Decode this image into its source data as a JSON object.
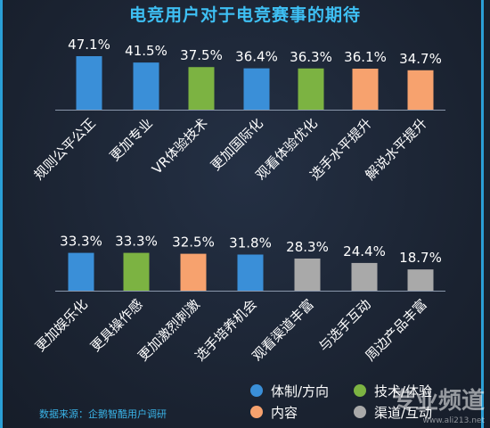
{
  "title": "电竞用户对于电竞赛事的期待",
  "source": "数据来源：企鹅智酷用户调研",
  "watermark": "专业频道",
  "watermark_url": "www.ali213.net",
  "colors": {
    "体制/方向": "#3a8fd8",
    "技术/体验": "#7cb342",
    "内容": "#f7a26e",
    "渠道/互动": "#a9a9a9"
  },
  "chart_data": {
    "type": "bar",
    "unit": "%",
    "legend": [
      {
        "name": "体制/方向"
      },
      {
        "name": "技术/体验"
      },
      {
        "name": "内容"
      },
      {
        "name": "渠道/互动"
      }
    ],
    "legend_position": "bottom-right",
    "grid": false,
    "rows": [
      {
        "items": [
          {
            "label": "规则公平公正",
            "value": 47.1,
            "group": "体制/方向"
          },
          {
            "label": "更加专业",
            "value": 41.5,
            "group": "体制/方向"
          },
          {
            "label": "VR体验技术",
            "value": 37.5,
            "group": "技术/体验"
          },
          {
            "label": "更加国际化",
            "value": 36.4,
            "group": "体制/方向"
          },
          {
            "label": "观看体验优化",
            "value": 36.3,
            "group": "技术/体验"
          },
          {
            "label": "选手水平提升",
            "value": 36.1,
            "group": "内容"
          },
          {
            "label": "解说水平提升",
            "value": 34.7,
            "group": "内容"
          }
        ]
      },
      {
        "items": [
          {
            "label": "更加娱乐化",
            "value": 33.3,
            "group": "体制/方向"
          },
          {
            "label": "更具操作感",
            "value": 33.3,
            "group": "技术/体验"
          },
          {
            "label": "更加激烈刺激",
            "value": 32.5,
            "group": "内容"
          },
          {
            "label": "选手培养机会",
            "value": 31.8,
            "group": "体制/方向"
          },
          {
            "label": "观看渠道丰富",
            "value": 28.3,
            "group": "渠道/互动"
          },
          {
            "label": "与选手互动",
            "value": 24.4,
            "group": "渠道/互动"
          },
          {
            "label": "周边产品丰富",
            "value": 18.7,
            "group": "渠道/互动"
          }
        ]
      }
    ]
  }
}
